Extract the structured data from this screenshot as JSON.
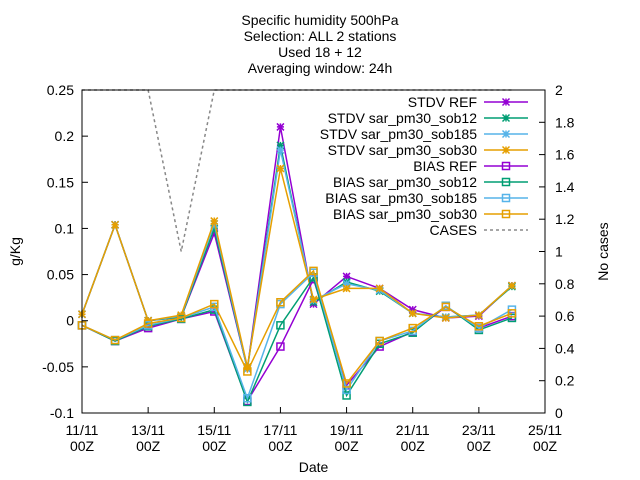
{
  "chart_data": {
    "type": "line",
    "title_lines": [
      "Specific humidity 500hPa",
      "Selection: ALL       2 stations",
      "Used 18 + 12",
      "Averaging window: 24h"
    ],
    "xlabel": "Date",
    "ylabel": "g/Kg",
    "y2label": "No cases",
    "x": [
      0,
      1,
      2,
      3,
      4,
      5,
      6,
      7,
      8,
      9,
      10,
      11,
      12,
      13
    ],
    "xlim": [
      0,
      14
    ],
    "x_ticks": [
      {
        "pos": 0,
        "line1": "11/11",
        "line2": "00Z"
      },
      {
        "pos": 2,
        "line1": "13/11",
        "line2": "00Z"
      },
      {
        "pos": 4,
        "line1": "15/11",
        "line2": "00Z"
      },
      {
        "pos": 6,
        "line1": "17/11",
        "line2": "00Z"
      },
      {
        "pos": 8,
        "line1": "19/11",
        "line2": "00Z"
      },
      {
        "pos": 10,
        "line1": "21/11",
        "line2": "00Z"
      },
      {
        "pos": 12,
        "line1": "23/11",
        "line2": "00Z"
      },
      {
        "pos": 14,
        "line1": "25/11",
        "line2": "00Z"
      }
    ],
    "ylim": [
      -0.1,
      0.25
    ],
    "y_ticks": [
      "-0.1",
      "-0.05",
      "0",
      "0.05",
      "0.1",
      "0.15",
      "0.2",
      "0.25"
    ],
    "y2lim": [
      0,
      2
    ],
    "y2_ticks": [
      "0",
      "0.2",
      "0.4",
      "0.6",
      "0.8",
      "1",
      "1.2",
      "1.4",
      "1.6",
      "1.8",
      "2"
    ],
    "grid": false,
    "legend_position": "top-right",
    "series": [
      {
        "name": "STDV REF",
        "color": "#9400d3",
        "marker": "star",
        "values": [
          0.007,
          0.104,
          0.0,
          0.004,
          0.095,
          -0.052,
          0.21,
          0.018,
          0.048,
          0.035,
          0.012,
          0.003,
          0.005,
          0.038
        ]
      },
      {
        "name": "STDV sar_pm30_sob12",
        "color": "#009e73",
        "marker": "star",
        "values": [
          0.007,
          0.104,
          0.0,
          0.004,
          0.1,
          -0.052,
          0.19,
          0.02,
          0.042,
          0.032,
          0.008,
          0.004,
          0.006,
          0.037
        ]
      },
      {
        "name": "STDV sar_pm30_sob185",
        "color": "#56b4e9",
        "marker": "star",
        "values": [
          0.007,
          0.104,
          0.0,
          0.005,
          0.105,
          -0.052,
          0.185,
          0.022,
          0.04,
          0.033,
          0.008,
          0.004,
          0.006,
          0.038
        ]
      },
      {
        "name": "STDV sar_pm30_sob30",
        "color": "#e69f00",
        "marker": "star",
        "values": [
          0.007,
          0.104,
          0.0,
          0.006,
          0.108,
          -0.05,
          0.165,
          0.023,
          0.035,
          0.035,
          0.008,
          0.003,
          0.006,
          0.038
        ]
      },
      {
        "name": "BIAS REF",
        "color": "#9400d3",
        "marker": "square",
        "values": [
          -0.005,
          -0.022,
          -0.008,
          0.002,
          0.01,
          -0.087,
          -0.028,
          0.045,
          -0.07,
          -0.028,
          -0.012,
          0.015,
          -0.008,
          0.005
        ]
      },
      {
        "name": "BIAS sar_pm30_sob12",
        "color": "#009e73",
        "marker": "square",
        "values": [
          -0.005,
          -0.022,
          -0.006,
          0.002,
          0.012,
          -0.088,
          -0.005,
          0.047,
          -0.081,
          -0.025,
          -0.013,
          0.016,
          -0.01,
          0.003
        ]
      },
      {
        "name": "BIAS sar_pm30_sob185",
        "color": "#56b4e9",
        "marker": "square",
        "values": [
          -0.005,
          -0.021,
          -0.005,
          0.003,
          0.015,
          -0.084,
          0.018,
          0.052,
          -0.075,
          -0.022,
          -0.011,
          0.016,
          -0.008,
          0.012
        ]
      },
      {
        "name": "BIAS sar_pm30_sob30",
        "color": "#e69f00",
        "marker": "square",
        "values": [
          -0.005,
          -0.021,
          -0.003,
          0.003,
          0.018,
          -0.055,
          0.02,
          0.054,
          -0.068,
          -0.022,
          -0.008,
          0.015,
          -0.006,
          0.008
        ]
      }
    ],
    "cases": {
      "name": "CASES",
      "color": "#888888",
      "axis": "y2",
      "x": [
        0,
        2,
        3,
        4,
        5,
        6,
        7,
        8,
        9,
        10,
        11,
        12,
        13
      ],
      "values": [
        2,
        2,
        1,
        2,
        2,
        2,
        2,
        2,
        2,
        2,
        2,
        2,
        2
      ]
    }
  }
}
